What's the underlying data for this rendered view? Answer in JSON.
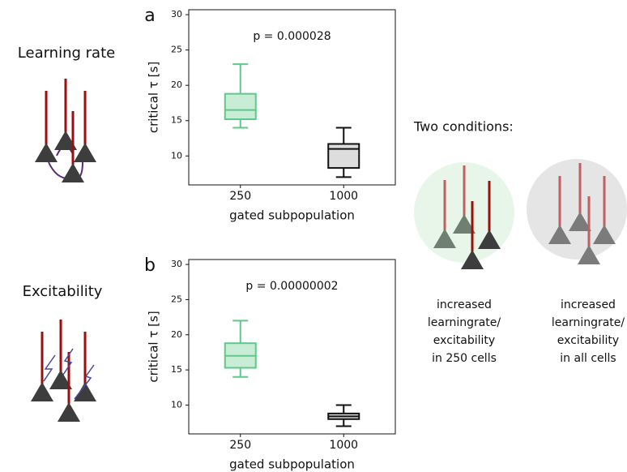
{
  "chart_data": [
    {
      "type": "box",
      "label": "a",
      "annotation": "p = 0.000028",
      "ylabel": "critical τ [s]",
      "xlabel": "gated subpopulation",
      "categories": [
        "250",
        "1000"
      ],
      "ylim": [
        5.9,
        30.7
      ],
      "yticks": [
        10,
        15,
        20,
        25,
        30
      ],
      "series": [
        {
          "color": "#5dc98a",
          "fill": "#c8ecd5",
          "min": 14,
          "q1": 15.2,
          "median": 16.5,
          "q3": 18.8,
          "max": 23
        },
        {
          "color": "#111111",
          "fill": "#dddddd",
          "min": 7,
          "q1": 8.3,
          "median": 11,
          "q3": 11.7,
          "max": 14
        }
      ]
    },
    {
      "type": "box",
      "label": "b",
      "annotation": "p = 0.00000002",
      "ylabel": "critical τ [s]",
      "xlabel": "gated subpopulation",
      "categories": [
        "250",
        "1000"
      ],
      "ylim": [
        5.9,
        30.7
      ],
      "yticks": [
        10,
        15,
        20,
        25,
        30
      ],
      "series": [
        {
          "color": "#5dc98a",
          "fill": "#c8ecd5",
          "min": 14,
          "q1": 15.3,
          "median": 17,
          "q3": 18.8,
          "max": 22
        },
        {
          "color": "#111111",
          "fill": "#dddddd",
          "min": 7,
          "q1": 8,
          "median": 8.4,
          "q3": 8.8,
          "max": 10
        }
      ]
    }
  ],
  "side_labels": [
    "Learning rate",
    "Excitability"
  ],
  "conditions": {
    "title": "Two conditions:",
    "labels": [
      [
        "increased",
        "learningrate/",
        "excitability",
        "in 250 cells"
      ],
      [
        "increased",
        "learningrate/",
        "excitability",
        "in all cells"
      ]
    ]
  }
}
